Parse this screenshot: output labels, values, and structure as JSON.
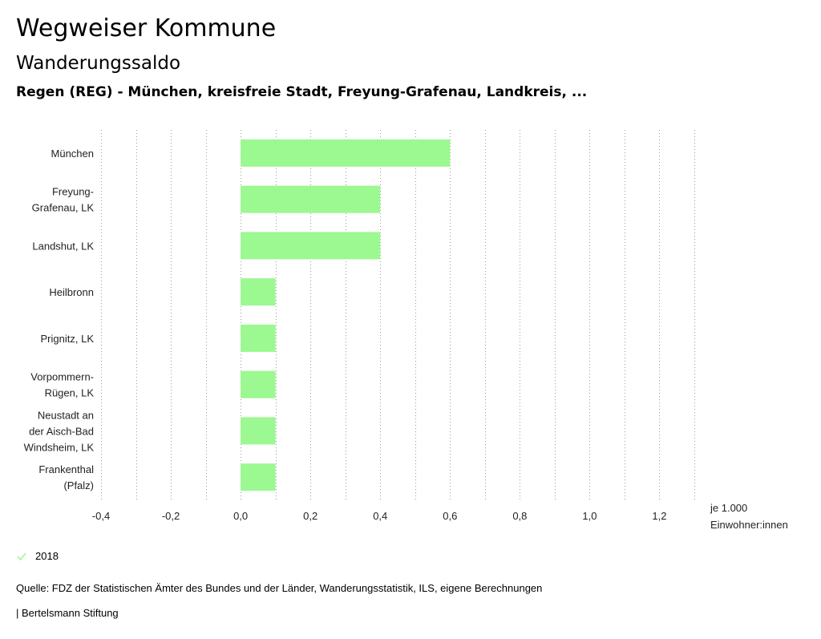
{
  "header": {
    "title": "Wegweiser Kommune",
    "subtitle": "Wanderungssaldo",
    "region": "Regen (REG) - München, kreisfreie Stadt, Freyung-Grafenau, Landkreis, ..."
  },
  "chart_data": {
    "type": "bar",
    "orientation": "horizontal",
    "categories": [
      [
        "München"
      ],
      [
        "Freyung-",
        "Grafenau, LK"
      ],
      [
        "Landshut, LK"
      ],
      [
        "Heilbronn"
      ],
      [
        "Prignitz, LK"
      ],
      [
        "Vorpommern-",
        "Rügen, LK"
      ],
      [
        "Neustadt an",
        "der Aisch-Bad",
        "Windsheim, LK"
      ],
      [
        "Frankenthal",
        "(Pfalz)"
      ]
    ],
    "series": [
      {
        "name": "2018",
        "values": [
          0.6,
          0.4,
          0.4,
          0.1,
          0.1,
          0.1,
          0.1,
          0.1
        ]
      }
    ],
    "xlim": [
      -0.4,
      1.3
    ],
    "xticks": [
      -0.4,
      -0.2,
      0.0,
      0.2,
      0.4,
      0.6,
      0.8,
      1.0,
      1.2
    ],
    "xtick_labels": [
      "-0,4",
      "-0,2",
      "0,0",
      "0,2",
      "0,4",
      "0,6",
      "0,8",
      "1,0",
      "1,2"
    ],
    "gridlines": [
      -0.4,
      -0.3,
      -0.2,
      -0.1,
      0.0,
      0.1,
      0.2,
      0.3,
      0.4,
      0.5,
      0.6,
      0.7,
      0.8,
      0.9,
      1.0,
      1.1,
      1.2,
      1.3
    ],
    "unit_label": [
      "je 1.000",
      "Einwohner:innen"
    ],
    "grid": true,
    "legend_position": "bottom-left",
    "bar_color": "#9cf891",
    "grid_color": "#9a9a9a"
  },
  "legend": {
    "label": "2018",
    "icon": "check-icon",
    "color": "#9cf891"
  },
  "footer": {
    "source": "Quelle: FDZ der Statistischen Ämter des Bundes und der Länder, Wanderungsstatistik, ILS, eigene Berechnungen",
    "publisher": "| Bertelsmann Stiftung"
  }
}
